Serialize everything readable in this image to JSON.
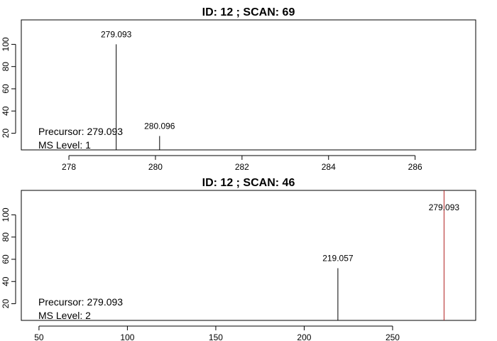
{
  "chart_data": [
    {
      "type": "bar",
      "title": "ID: 12 ; SCAN: 69",
      "xlabel": "",
      "ylabel": "",
      "xlim": [
        276.9,
        287.4
      ],
      "ylim": [
        5,
        122
      ],
      "xticks": [
        278,
        280,
        282,
        284,
        286
      ],
      "yticks": [
        20,
        40,
        60,
        80,
        100
      ],
      "grid": false,
      "peaks": [
        {
          "x": 279.093,
          "y": 100,
          "label": "279.093",
          "color": "#000000"
        },
        {
          "x": 280.096,
          "y": 17.5,
          "label": "280.096",
          "color": "#000000"
        }
      ],
      "annotations": [
        "Precursor: 279.093",
        "MS Level: 1"
      ]
    },
    {
      "type": "bar",
      "title": "ID: 12 ; SCAN: 46",
      "xlabel": "",
      "ylabel": "",
      "xlim": [
        40,
        297
      ],
      "ylim": [
        5,
        122
      ],
      "xticks": [
        50,
        100,
        150,
        200,
        250
      ],
      "yticks": [
        20,
        40,
        60,
        80,
        100
      ],
      "grid": false,
      "peaks": [
        {
          "x": 219.057,
          "y": 52,
          "label": "219.057",
          "color": "#000000"
        }
      ],
      "precursor_line": {
        "x": 279.093,
        "label": "279.093",
        "color": "#b22222"
      },
      "annotations": [
        "Precursor: 279.093",
        "MS Level: 2"
      ]
    }
  ]
}
